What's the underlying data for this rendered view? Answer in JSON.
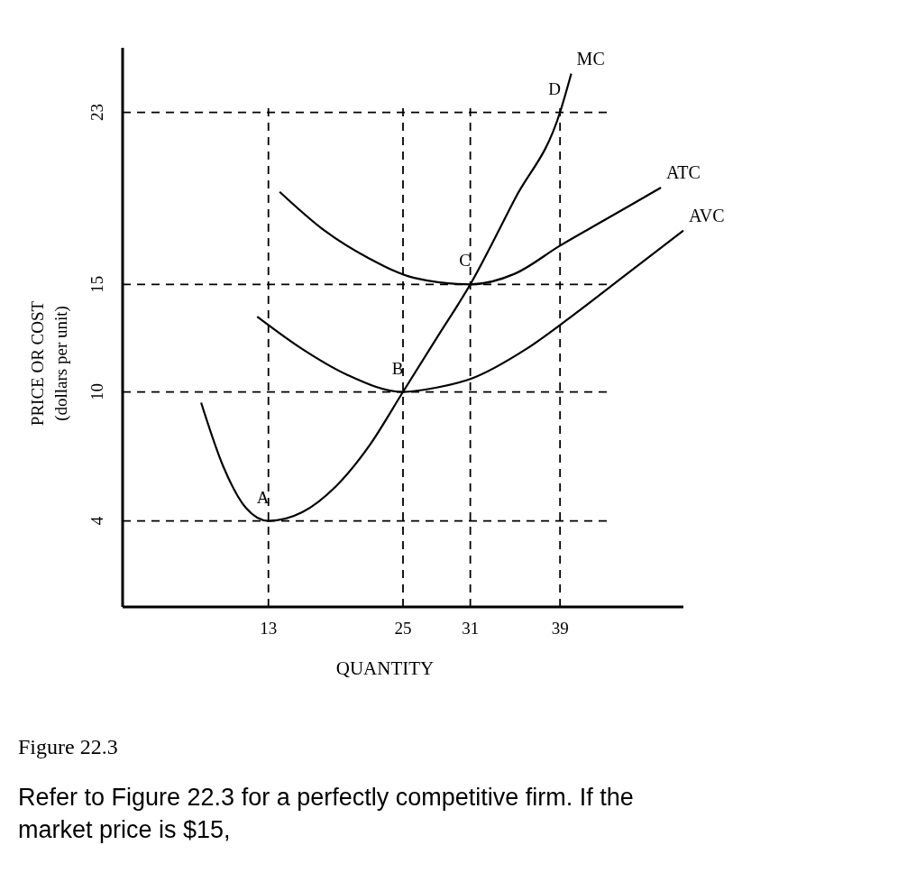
{
  "chart_data": {
    "type": "line",
    "xlabel": "QUANTITY",
    "ylabel": "PRICE OR COST\n(dollars per unit)",
    "xlim": [
      0,
      50
    ],
    "ylim": [
      0,
      26
    ],
    "xticks": [
      13,
      25,
      31,
      39
    ],
    "yticks": [
      4,
      10,
      15,
      23
    ],
    "grid": false,
    "line_style": "solid",
    "marker": "none",
    "series": [
      {
        "name": "MC",
        "color": "#000000",
        "x": [
          7,
          9,
          11,
          13,
          16,
          19,
          22,
          25,
          28,
          31,
          35,
          39,
          40
        ],
        "values": [
          9.5,
          6.5,
          4.6,
          4,
          4.4,
          5.6,
          7.5,
          10,
          12.5,
          15,
          19,
          23,
          24.8
        ]
      },
      {
        "name": "ATC",
        "color": "#000000",
        "x": [
          14,
          18,
          22,
          26,
          31,
          35,
          39,
          43,
          48
        ],
        "values": [
          19.3,
          17.5,
          16.2,
          15.3,
          15,
          15.5,
          16.8,
          18,
          19.5
        ]
      },
      {
        "name": "AVC",
        "color": "#000000",
        "x": [
          12,
          16,
          20,
          25,
          28,
          31,
          36,
          40,
          45,
          50
        ],
        "values": [
          13.5,
          12,
          10.8,
          10,
          10.2,
          10.6,
          12,
          13.5,
          15.5,
          17.5
        ]
      }
    ],
    "ref_lines": [
      {
        "axis": "y",
        "value": 4,
        "line_style": "dashed"
      },
      {
        "axis": "y",
        "value": 10,
        "line_style": "dashed"
      },
      {
        "axis": "y",
        "value": 15,
        "line_style": "dashed"
      },
      {
        "axis": "y",
        "value": 23,
        "line_style": "dashed"
      },
      {
        "axis": "x",
        "value": 13,
        "line_style": "dashed"
      },
      {
        "axis": "x",
        "value": 25,
        "line_style": "dashed"
      },
      {
        "axis": "x",
        "value": 31,
        "line_style": "dashed"
      },
      {
        "axis": "x",
        "value": 39,
        "line_style": "dashed"
      }
    ],
    "annotations": [
      {
        "text": "A",
        "x": 13,
        "y": 4
      },
      {
        "text": "B",
        "x": 25,
        "y": 10
      },
      {
        "text": "C",
        "x": 31,
        "y": 15
      },
      {
        "text": "D",
        "x": 39,
        "y": 23
      },
      "Figure 22.3",
      "Refer to Figure 22.3 for a perfectly competitive firm. If the market price is $15,"
    ]
  }
}
